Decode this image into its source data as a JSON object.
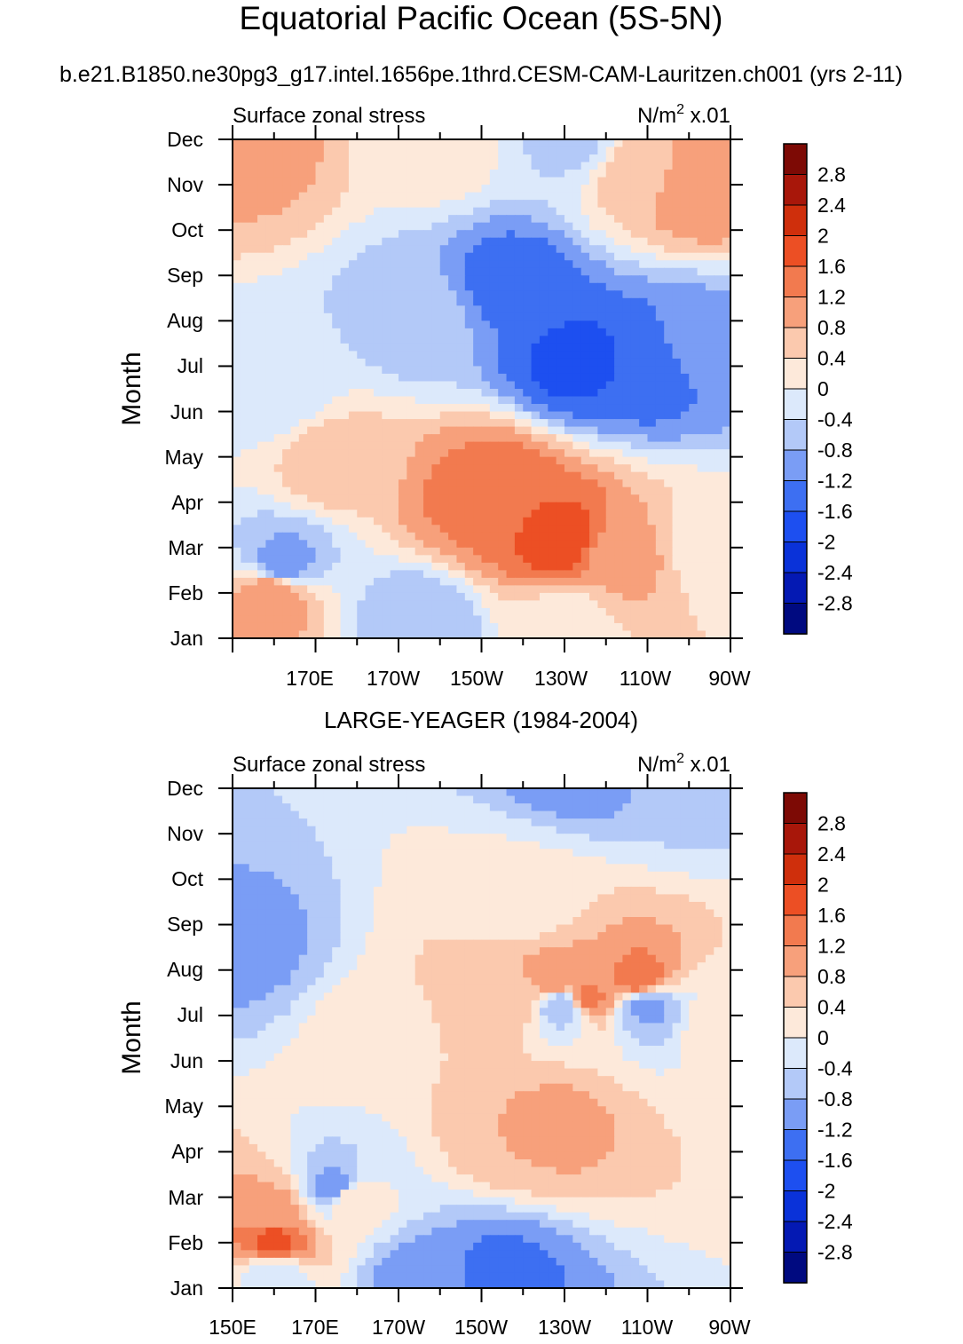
{
  "chart_data": {
    "type": "heatmap",
    "title": "Equatorial Pacific Ocean (5S-5N)",
    "subtitle": "b.e21.B1850.ne30pg3_g17.intel.1656pe.1thrd.CESM-CAM-Lauritzen.ch001 (yrs 2-11)",
    "units_sup": "2",
    "colorbar": {
      "levels": [
        -2.8,
        -2.4,
        -2,
        -1.6,
        -1.2,
        -0.8,
        -0.4,
        0,
        0.4,
        0.8,
        1.2,
        1.6,
        2,
        2.4,
        2.8
      ],
      "labels": [
        "2.8",
        "2.4",
        "2",
        "1.6",
        "1.2",
        "0.8",
        "0.4",
        "0",
        "-0.4",
        "-0.8",
        "-1.2",
        "-1.6",
        "-2",
        "-2.4",
        "-2.8"
      ],
      "colors": [
        "#000a80",
        "#0419b3",
        "#0a32d9",
        "#1d4ff0",
        "#3d6ff2",
        "#7a9df5",
        "#b3c9f8",
        "#dce9fb",
        "#fde9da",
        "#fbc9ae",
        "#f7a07b",
        "#f27a4f",
        "#ec4f24",
        "#cf2f0c",
        "#a8170a",
        "#7d0a05"
      ]
    },
    "months": [
      "Jan",
      "Feb",
      "Mar",
      "Apr",
      "May",
      "Jun",
      "Jul",
      "Aug",
      "Sep",
      "Oct",
      "Nov",
      "Dec"
    ],
    "lon_ticks": [
      "150E",
      "170E",
      "170W",
      "150W",
      "130W",
      "110W",
      "90W"
    ],
    "lon_range": [
      150,
      270
    ],
    "panels": [
      {
        "id": "model",
        "title": "",
        "left_label": "Surface zonal stress",
        "right_label_pre": "N/m",
        "right_label_post": " x.01",
        "ylabel": "Month",
        "xtick_labels": [
          "",
          "170E",
          "170W",
          "150W",
          "130W",
          "110W",
          "90W"
        ],
        "anchors": [
          {
            "lon": 160,
            "month": 1,
            "value": 1.2
          },
          {
            "lon": 155,
            "month": 10.7,
            "value": 0.9
          },
          {
            "lon": 200,
            "month": 10.9,
            "value": 0.2
          },
          {
            "lon": 248,
            "month": 10.3,
            "value": 0.6
          },
          {
            "lon": 262,
            "month": 10,
            "value": 1.2
          },
          {
            "lon": 232,
            "month": 11,
            "value": -0.5
          },
          {
            "lon": 218,
            "month": 7.8,
            "value": -1.4
          },
          {
            "lon": 232,
            "month": 6.1,
            "value": -1.7
          },
          {
            "lon": 250,
            "month": 6.1,
            "value": -1.6
          },
          {
            "lon": 262,
            "month": 6.5,
            "value": -0.9
          },
          {
            "lon": 160,
            "month": 5.5,
            "value": -0.3
          },
          {
            "lon": 195,
            "month": 7,
            "value": -0.6
          },
          {
            "lon": 215,
            "month": 3.2,
            "value": 1.5
          },
          {
            "lon": 228,
            "month": 2.2,
            "value": 1.8
          },
          {
            "lon": 210,
            "month": 3,
            "value": 1.3
          },
          {
            "lon": 245,
            "month": 1.8,
            "value": 0.9
          },
          {
            "lon": 175,
            "month": 3.9,
            "value": 0.6
          },
          {
            "lon": 266,
            "month": 2,
            "value": 0.1
          },
          {
            "lon": 162,
            "month": 1.6,
            "value": -1.0
          },
          {
            "lon": 195,
            "month": 0.3,
            "value": -0.8
          },
          {
            "lon": 230,
            "month": 0.3,
            "value": 0.2
          }
        ]
      },
      {
        "id": "obs",
        "title": "LARGE-YEAGER (1984-2004)",
        "left_label": "Surface zonal stress",
        "right_label_pre": "N/m",
        "right_label_post": " x.01",
        "ylabel": "Month",
        "xtick_labels": [
          "150E",
          "170E",
          "170W",
          "150W",
          "130W",
          "110W",
          "90W"
        ],
        "anchors": [
          {
            "lon": 160,
            "month": 1,
            "value": 1.7
          },
          {
            "lon": 160,
            "month": 1.7,
            "value": 0.9
          },
          {
            "lon": 178,
            "month": 2,
            "value": 0.4
          },
          {
            "lon": 218,
            "month": 3.5,
            "value": 0.8
          },
          {
            "lon": 228,
            "month": 3.6,
            "value": 0.9
          },
          {
            "lon": 235,
            "month": 11.7,
            "value": -1.2
          },
          {
            "lon": 262,
            "month": 11,
            "value": -0.5
          },
          {
            "lon": 153,
            "month": 7.5,
            "value": -0.9
          },
          {
            "lon": 230,
            "month": 6.2,
            "value": -0.7
          },
          {
            "lon": 250,
            "month": 6.2,
            "value": -0.9
          },
          {
            "lon": 185,
            "month": 5.5,
            "value": 0.2
          },
          {
            "lon": 220,
            "month": 8.5,
            "value": 0.1
          },
          {
            "lon": 215,
            "month": 6.3,
            "value": 0.8
          },
          {
            "lon": 235,
            "month": 6.4,
            "value": 1.3
          },
          {
            "lon": 248,
            "month": 6.8,
            "value": 1.4
          },
          {
            "lon": 228,
            "month": 6.8,
            "value": 1.0
          },
          {
            "lon": 266,
            "month": 5.8,
            "value": 0.1
          },
          {
            "lon": 175,
            "month": 2.2,
            "value": -1.0
          },
          {
            "lon": 215,
            "month": 0.3,
            "value": -1.3
          },
          {
            "lon": 195,
            "month": 0.2,
            "value": -1.0
          },
          {
            "lon": 160,
            "month": 0.3,
            "value": -0.3
          }
        ]
      }
    ]
  }
}
